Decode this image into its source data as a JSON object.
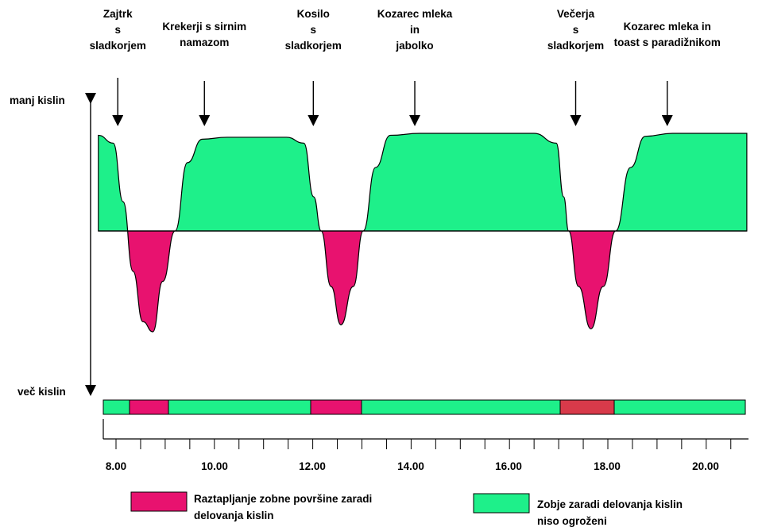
{
  "chart_data": {
    "type": "area",
    "y_top_label": "manj kislin",
    "y_bottom_label": "več kislin",
    "x_ticks": [
      "8.00",
      "10.00",
      "12.00",
      "14.00",
      "16.00",
      "18.00",
      "20.00"
    ],
    "xlim": [
      8.0,
      21.0
    ],
    "ylim": [
      -1.05,
      1.0
    ],
    "baseline": 0,
    "meals": [
      {
        "time": 8.0,
        "label": [
          "Zajtrk",
          "s",
          "sladkorjem"
        ]
      },
      {
        "time": 9.75,
        "label": [
          "Krekerji s sirnim",
          "namazom"
        ]
      },
      {
        "time": 11.95,
        "label": [
          "Kosilo",
          "s",
          "sladkorjem"
        ]
      },
      {
        "time": 14.0,
        "label": [
          "Kozarec mleka",
          "in",
          "jabolko"
        ]
      },
      {
        "time": 17.25,
        "label": [
          "Večerja",
          "s",
          "sladkorjem"
        ]
      },
      {
        "time": 19.1,
        "label": [
          "Kozarec mleka in",
          "toast s paradižnikom"
        ]
      }
    ],
    "curve": [
      {
        "x": 7.8,
        "y": 0.98
      },
      {
        "x": 8.1,
        "y": 0.9
      },
      {
        "x": 8.3,
        "y": 0.3
      },
      {
        "x": 8.5,
        "y": -0.4
      },
      {
        "x": 8.7,
        "y": -0.9
      },
      {
        "x": 8.9,
        "y": -1.0
      },
      {
        "x": 9.1,
        "y": -0.5
      },
      {
        "x": 9.35,
        "y": 0.0
      },
      {
        "x": 9.6,
        "y": 0.7
      },
      {
        "x": 9.9,
        "y": 0.94
      },
      {
        "x": 10.4,
        "y": 0.96
      },
      {
        "x": 11.6,
        "y": 0.96
      },
      {
        "x": 11.95,
        "y": 0.9
      },
      {
        "x": 12.15,
        "y": 0.35
      },
      {
        "x": 12.3,
        "y": 0.0
      },
      {
        "x": 12.5,
        "y": -0.55
      },
      {
        "x": 12.7,
        "y": -0.93
      },
      {
        "x": 12.95,
        "y": -0.55
      },
      {
        "x": 13.15,
        "y": 0.0
      },
      {
        "x": 13.4,
        "y": 0.65
      },
      {
        "x": 13.7,
        "y": 0.98
      },
      {
        "x": 14.3,
        "y": 1.0
      },
      {
        "x": 16.6,
        "y": 1.0
      },
      {
        "x": 17.05,
        "y": 0.9
      },
      {
        "x": 17.2,
        "y": 0.35
      },
      {
        "x": 17.3,
        "y": 0.0
      },
      {
        "x": 17.5,
        "y": -0.55
      },
      {
        "x": 17.75,
        "y": -0.97
      },
      {
        "x": 18.0,
        "y": -0.55
      },
      {
        "x": 18.25,
        "y": 0.0
      },
      {
        "x": 18.55,
        "y": 0.65
      },
      {
        "x": 18.85,
        "y": 0.97
      },
      {
        "x": 19.4,
        "y": 1.0
      },
      {
        "x": 20.9,
        "y": 1.0
      }
    ],
    "status_bar": [
      {
        "start": 7.8,
        "end": 8.35,
        "state": "safe"
      },
      {
        "start": 8.35,
        "end": 9.1,
        "state": "erosion"
      },
      {
        "start": 9.1,
        "end": 12.2,
        "state": "safe"
      },
      {
        "start": 12.2,
        "end": 13.2,
        "state": "erosion"
      },
      {
        "start": 13.2,
        "end": 17.15,
        "state": "safe"
      },
      {
        "start": 17.15,
        "end": 18.2,
        "state": "erosion-dark"
      },
      {
        "start": 18.2,
        "end": 20.95,
        "state": "safe"
      }
    ],
    "colors": {
      "safe": "#1ef08a",
      "erosion": "#e8126f",
      "erosion-dark": "#d83a4a",
      "stroke": "#000000"
    },
    "legend": [
      {
        "state": "erosion",
        "text": [
          "Raztapljanje zobne površine zaradi",
          "delovanja kislin"
        ]
      },
      {
        "state": "safe",
        "text": [
          "Zobje zaradi delovanja kislin",
          "niso ogroženi"
        ]
      }
    ]
  }
}
